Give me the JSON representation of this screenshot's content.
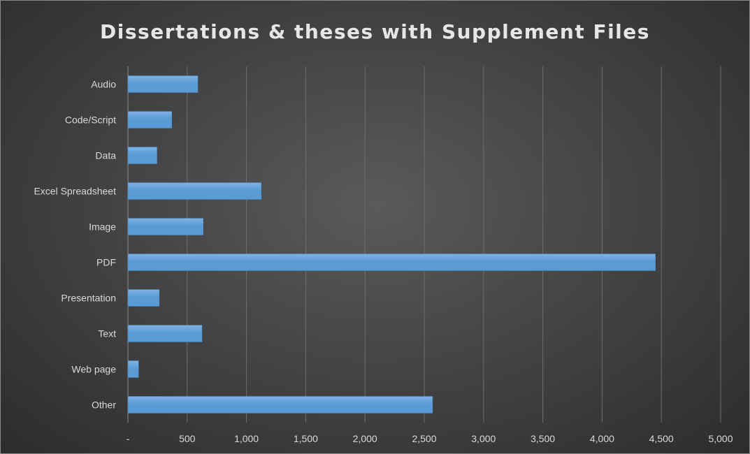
{
  "colors": {
    "bar": "#5b9bd5",
    "bar_highlight": "#7fb2e3",
    "gridline": "#6e6e6e",
    "text": "#d9d9d9",
    "background": "#404040"
  },
  "chart_data": {
    "type": "bar",
    "orientation": "horizontal",
    "title": "Dissertations & theses with Supplement Files",
    "xlabel": "",
    "ylabel": "",
    "categories": [
      "Audio",
      "Code/Script",
      "Data",
      "Excel Spreadsheet",
      "Image",
      "PDF",
      "Presentation",
      "Text",
      "Web page",
      "Other"
    ],
    "values": [
      590,
      370,
      245,
      1125,
      635,
      4450,
      265,
      625,
      90,
      2570
    ],
    "xlim": [
      0,
      5000
    ],
    "x_ticks": [
      0,
      500,
      1000,
      1500,
      2000,
      2500,
      3000,
      3500,
      4000,
      4500,
      5000
    ],
    "x_tick_labels": [
      "-",
      "500",
      "1,000",
      "1,500",
      "2,000",
      "2,500",
      "3,000",
      "3,500",
      "4,000",
      "4,500",
      "5,000"
    ],
    "grid": "vertical",
    "legend": "none"
  }
}
